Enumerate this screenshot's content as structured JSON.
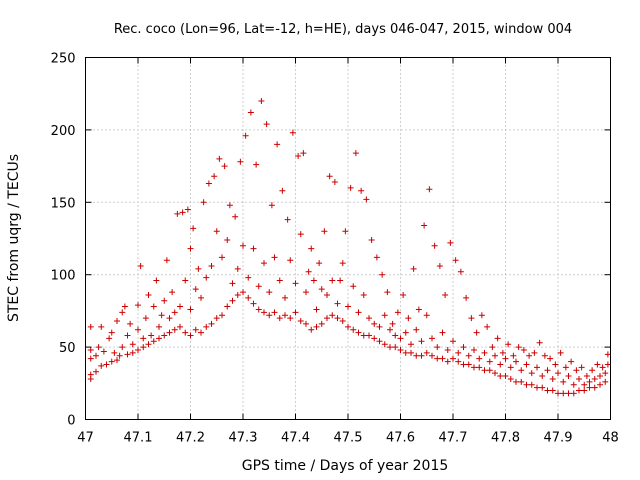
{
  "chart_data": {
    "type": "scatter",
    "title": "Rec. coco (Lon=96, Lat=-12, h=HE), days 046-047, 2015, window 004",
    "xlabel": "GPS time / Days of year 2015",
    "ylabel": "STEC from uqrg / TECUs",
    "xlim": [
      47,
      48
    ],
    "ylim": [
      0,
      250
    ],
    "x_ticks": [
      "47",
      "47.1",
      "47.2",
      "47.3",
      "47.4",
      "47.5",
      "47.6",
      "47.7",
      "47.8",
      "47.9",
      "48"
    ],
    "y_ticks": [
      "0",
      "50",
      "100",
      "150",
      "200",
      "250"
    ],
    "grid": true,
    "marker": "plus",
    "color": "#cc0000",
    "series": [
      {
        "points": [
          [
            47.01,
            28
          ],
          [
            47.01,
            31
          ],
          [
            47.01,
            42
          ],
          [
            47.01,
            48
          ],
          [
            47.01,
            64
          ],
          [
            47.02,
            33
          ],
          [
            47.02,
            44
          ],
          [
            47.025,
            50
          ],
          [
            47.03,
            37
          ],
          [
            47.03,
            64
          ],
          [
            47.035,
            47
          ],
          [
            47.04,
            38
          ],
          [
            47.045,
            56
          ],
          [
            47.05,
            40
          ],
          [
            47.05,
            60
          ],
          [
            47.055,
            46
          ],
          [
            47.06,
            41
          ],
          [
            47.06,
            68
          ],
          [
            47.065,
            44
          ],
          [
            47.07,
            50
          ],
          [
            47.07,
            74
          ],
          [
            47.075,
            78
          ],
          [
            47.08,
            45
          ],
          [
            47.08,
            58
          ],
          [
            47.085,
            66
          ],
          [
            47.09,
            46
          ],
          [
            47.09,
            52
          ],
          [
            47.1,
            48
          ],
          [
            47.1,
            62
          ],
          [
            47.1,
            79
          ],
          [
            47.105,
            106
          ],
          [
            47.11,
            50
          ],
          [
            47.11,
            56
          ],
          [
            47.115,
            70
          ],
          [
            47.12,
            52
          ],
          [
            47.12,
            86
          ],
          [
            47.125,
            58
          ],
          [
            47.13,
            54
          ],
          [
            47.13,
            78
          ],
          [
            47.135,
            96
          ],
          [
            47.14,
            56
          ],
          [
            47.14,
            64
          ],
          [
            47.145,
            72
          ],
          [
            47.15,
            58
          ],
          [
            47.15,
            82
          ],
          [
            47.155,
            110
          ],
          [
            47.16,
            60
          ],
          [
            47.16,
            70
          ],
          [
            47.165,
            88
          ],
          [
            47.17,
            62
          ],
          [
            47.17,
            74
          ],
          [
            47.175,
            142
          ],
          [
            47.18,
            64
          ],
          [
            47.18,
            78
          ],
          [
            47.185,
            143
          ],
          [
            47.19,
            60
          ],
          [
            47.19,
            96
          ],
          [
            47.195,
            145
          ],
          [
            47.2,
            58
          ],
          [
            47.2,
            76
          ],
          [
            47.2,
            118
          ],
          [
            47.205,
            132
          ],
          [
            47.21,
            62
          ],
          [
            47.21,
            90
          ],
          [
            47.215,
            104
          ],
          [
            47.22,
            60
          ],
          [
            47.22,
            84
          ],
          [
            47.225,
            150
          ],
          [
            47.23,
            64
          ],
          [
            47.23,
            98
          ],
          [
            47.235,
            163
          ],
          [
            47.24,
            66
          ],
          [
            47.24,
            106
          ],
          [
            47.245,
            168
          ],
          [
            47.25,
            70
          ],
          [
            47.25,
            130
          ],
          [
            47.255,
            180
          ],
          [
            47.26,
            72
          ],
          [
            47.26,
            112
          ],
          [
            47.265,
            175
          ],
          [
            47.27,
            78
          ],
          [
            47.27,
            124
          ],
          [
            47.275,
            148
          ],
          [
            47.28,
            82
          ],
          [
            47.28,
            94
          ],
          [
            47.285,
            140
          ],
          [
            47.29,
            86
          ],
          [
            47.29,
            104
          ],
          [
            47.295,
            178
          ],
          [
            47.3,
            88
          ],
          [
            47.3,
            120
          ],
          [
            47.305,
            196
          ],
          [
            47.31,
            84
          ],
          [
            47.31,
            98
          ],
          [
            47.315,
            212
          ],
          [
            47.32,
            80
          ],
          [
            47.32,
            118
          ],
          [
            47.325,
            176
          ],
          [
            47.33,
            76
          ],
          [
            47.33,
            92
          ],
          [
            47.335,
            220
          ],
          [
            47.34,
            74
          ],
          [
            47.34,
            108
          ],
          [
            47.345,
            204
          ],
          [
            47.35,
            72
          ],
          [
            47.35,
            88
          ],
          [
            47.355,
            148
          ],
          [
            47.36,
            74
          ],
          [
            47.36,
            112
          ],
          [
            47.365,
            190
          ],
          [
            47.37,
            70
          ],
          [
            47.37,
            96
          ],
          [
            47.375,
            158
          ],
          [
            47.38,
            72
          ],
          [
            47.38,
            84
          ],
          [
            47.385,
            138
          ],
          [
            47.39,
            70
          ],
          [
            47.39,
            110
          ],
          [
            47.395,
            198
          ],
          [
            47.4,
            74
          ],
          [
            47.4,
            94
          ],
          [
            47.405,
            182
          ],
          [
            47.41,
            68
          ],
          [
            47.41,
            128
          ],
          [
            47.415,
            184
          ],
          [
            47.42,
            66
          ],
          [
            47.42,
            88
          ],
          [
            47.425,
            102
          ],
          [
            47.43,
            62
          ],
          [
            47.43,
            118
          ],
          [
            47.435,
            96
          ],
          [
            47.44,
            64
          ],
          [
            47.44,
            76
          ],
          [
            47.445,
            108
          ],
          [
            47.45,
            66
          ],
          [
            47.45,
            90
          ],
          [
            47.455,
            130
          ],
          [
            47.46,
            70
          ],
          [
            47.46,
            86
          ],
          [
            47.465,
            168
          ],
          [
            47.47,
            72
          ],
          [
            47.47,
            96
          ],
          [
            47.475,
            164
          ],
          [
            47.48,
            70
          ],
          [
            47.48,
            80
          ],
          [
            47.485,
            96
          ],
          [
            47.49,
            68
          ],
          [
            47.49,
            108
          ],
          [
            47.495,
            130
          ],
          [
            47.5,
            64
          ],
          [
            47.5,
            78
          ],
          [
            47.505,
            160
          ],
          [
            47.51,
            62
          ],
          [
            47.51,
            92
          ],
          [
            47.515,
            184
          ],
          [
            47.52,
            60
          ],
          [
            47.52,
            74
          ],
          [
            47.525,
            158
          ],
          [
            47.53,
            58
          ],
          [
            47.53,
            86
          ],
          [
            47.535,
            152
          ],
          [
            47.54,
            58
          ],
          [
            47.54,
            70
          ],
          [
            47.545,
            124
          ],
          [
            47.55,
            56
          ],
          [
            47.55,
            66
          ],
          [
            47.555,
            112
          ],
          [
            47.56,
            54
          ],
          [
            47.56,
            64
          ],
          [
            47.565,
            100
          ],
          [
            47.57,
            52
          ],
          [
            47.57,
            72
          ],
          [
            47.575,
            88
          ],
          [
            47.58,
            50
          ],
          [
            47.58,
            62
          ],
          [
            47.585,
            66
          ],
          [
            47.59,
            50
          ],
          [
            47.59,
            58
          ],
          [
            47.595,
            74
          ],
          [
            47.6,
            48
          ],
          [
            47.6,
            56
          ],
          [
            47.605,
            86
          ],
          [
            47.61,
            46
          ],
          [
            47.61,
            60
          ],
          [
            47.615,
            70
          ],
          [
            47.62,
            46
          ],
          [
            47.62,
            52
          ],
          [
            47.625,
            104
          ],
          [
            47.63,
            44
          ],
          [
            47.63,
            62
          ],
          [
            47.635,
            76
          ],
          [
            47.64,
            44
          ],
          [
            47.64,
            54
          ],
          [
            47.645,
            134
          ],
          [
            47.65,
            46
          ],
          [
            47.65,
            72
          ],
          [
            47.655,
            159
          ],
          [
            47.66,
            44
          ],
          [
            47.66,
            56
          ],
          [
            47.665,
            120
          ],
          [
            47.67,
            42
          ],
          [
            47.67,
            50
          ],
          [
            47.675,
            106
          ],
          [
            47.68,
            42
          ],
          [
            47.68,
            60
          ],
          [
            47.685,
            86
          ],
          [
            47.69,
            40
          ],
          [
            47.69,
            48
          ],
          [
            47.695,
            122
          ],
          [
            47.7,
            42
          ],
          [
            47.7,
            54
          ],
          [
            47.705,
            110
          ],
          [
            47.71,
            40
          ],
          [
            47.71,
            46
          ],
          [
            47.715,
            102
          ],
          [
            47.72,
            38
          ],
          [
            47.72,
            50
          ],
          [
            47.725,
            84
          ],
          [
            47.73,
            38
          ],
          [
            47.73,
            44
          ],
          [
            47.735,
            70
          ],
          [
            47.74,
            36
          ],
          [
            47.74,
            48
          ],
          [
            47.745,
            60
          ],
          [
            47.75,
            36
          ],
          [
            47.75,
            42
          ],
          [
            47.755,
            72
          ],
          [
            47.76,
            34
          ],
          [
            47.76,
            46
          ],
          [
            47.765,
            64
          ],
          [
            47.77,
            34
          ],
          [
            47.77,
            40
          ],
          [
            47.775,
            50
          ],
          [
            47.78,
            32
          ],
          [
            47.78,
            44
          ],
          [
            47.785,
            56
          ],
          [
            47.79,
            30
          ],
          [
            47.79,
            38
          ],
          [
            47.795,
            46
          ],
          [
            47.8,
            30
          ],
          [
            47.8,
            42
          ],
          [
            47.805,
            52
          ],
          [
            47.81,
            28
          ],
          [
            47.81,
            36
          ],
          [
            47.815,
            44
          ],
          [
            47.82,
            26
          ],
          [
            47.82,
            40
          ],
          [
            47.825,
            50
          ],
          [
            47.83,
            26
          ],
          [
            47.83,
            34
          ],
          [
            47.835,
            48
          ],
          [
            47.84,
            24
          ],
          [
            47.84,
            38
          ],
          [
            47.845,
            44
          ],
          [
            47.85,
            24
          ],
          [
            47.85,
            32
          ],
          [
            47.855,
            46
          ],
          [
            47.86,
            22
          ],
          [
            47.86,
            36
          ],
          [
            47.865,
            53
          ],
          [
            47.87,
            22
          ],
          [
            47.87,
            30
          ],
          [
            47.875,
            44
          ],
          [
            47.88,
            20
          ],
          [
            47.88,
            34
          ],
          [
            47.885,
            42
          ],
          [
            47.89,
            20
          ],
          [
            47.89,
            28
          ],
          [
            47.895,
            38
          ],
          [
            47.9,
            18
          ],
          [
            47.9,
            32
          ],
          [
            47.905,
            46
          ],
          [
            47.91,
            18
          ],
          [
            47.91,
            26
          ],
          [
            47.915,
            36
          ],
          [
            47.92,
            18
          ],
          [
            47.92,
            30
          ],
          [
            47.925,
            40
          ],
          [
            47.93,
            18
          ],
          [
            47.93,
            24
          ],
          [
            47.935,
            34
          ],
          [
            47.94,
            20
          ],
          [
            47.94,
            28
          ],
          [
            47.945,
            36
          ],
          [
            47.95,
            20
          ],
          [
            47.95,
            24
          ],
          [
            47.955,
            30
          ],
          [
            47.96,
            22
          ],
          [
            47.96,
            26
          ],
          [
            47.965,
            34
          ],
          [
            47.97,
            22
          ],
          [
            47.97,
            28
          ],
          [
            47.975,
            38
          ],
          [
            47.98,
            24
          ],
          [
            47.98,
            30
          ],
          [
            47.985,
            36
          ],
          [
            47.99,
            26
          ],
          [
            47.99,
            32
          ],
          [
            47.995,
            38
          ],
          [
            47.995,
            45
          ]
        ]
      }
    ]
  }
}
